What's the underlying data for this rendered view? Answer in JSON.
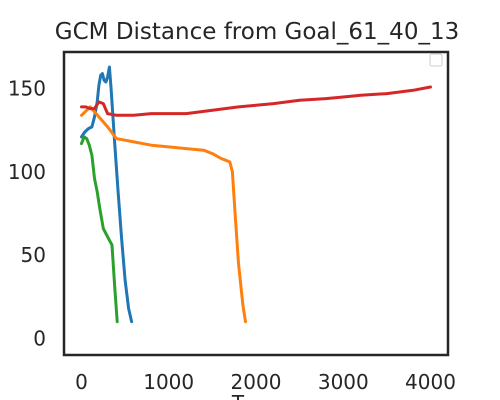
{
  "chart_data": {
    "type": "line",
    "title": "GCM Distance from Goal_61_40_13",
    "xlabel": "T",
    "ylabel": "",
    "xlim": [
      -200,
      4200
    ],
    "ylim": [
      -10,
      172
    ],
    "xticks": [
      0,
      1000,
      2000,
      3000,
      4000
    ],
    "xtick_labels": [
      "0",
      "1000",
      "2000",
      "3000",
      "4000"
    ],
    "yticks": [
      0,
      50,
      100,
      150
    ],
    "ytick_labels": [
      "0",
      "50",
      "100",
      "150"
    ],
    "grid": false,
    "legend": {
      "placement": "top-right",
      "entries": []
    },
    "series": [
      {
        "color": "#1f77b4",
        "x": [
          0,
          40,
          80,
          120,
          150,
          180,
          200,
          220,
          240,
          260,
          280,
          300,
          320,
          340,
          380,
          420,
          460,
          500,
          540,
          575
        ],
        "y": [
          121,
          124,
          126,
          127,
          133,
          142,
          152,
          158,
          159,
          155,
          154,
          157,
          163,
          150,
          118,
          88,
          60,
          35,
          18,
          10
        ]
      },
      {
        "color": "#ff7f0e",
        "x": [
          0,
          100,
          200,
          300,
          400,
          500,
          600,
          800,
          1000,
          1200,
          1400,
          1500,
          1600,
          1650,
          1700,
          1730,
          1760,
          1800,
          1850,
          1880
        ],
        "y": [
          134,
          139,
          133,
          127,
          120,
          119,
          118,
          116,
          115,
          114,
          113,
          111,
          108,
          107,
          106,
          100,
          75,
          45,
          20,
          10
        ]
      },
      {
        "color": "#2ca02c",
        "x": [
          0,
          30,
          60,
          90,
          120,
          150,
          180,
          210,
          250,
          300,
          350,
          380,
          410
        ],
        "y": [
          117,
          121,
          120,
          116,
          110,
          96,
          88,
          78,
          66,
          61,
          56,
          32,
          10
        ]
      },
      {
        "color": "#d62728",
        "x": [
          0,
          50,
          100,
          150,
          200,
          250,
          300,
          400,
          600,
          800,
          1000,
          1200,
          1500,
          1800,
          2000,
          2200,
          2500,
          2800,
          3000,
          3200,
          3500,
          3800,
          4000
        ],
        "y": [
          139,
          139,
          138,
          138,
          142,
          141,
          135,
          134,
          134,
          135,
          135,
          135,
          137,
          139,
          140,
          141,
          143,
          144,
          145,
          146,
          147,
          149,
          151
        ]
      }
    ]
  }
}
